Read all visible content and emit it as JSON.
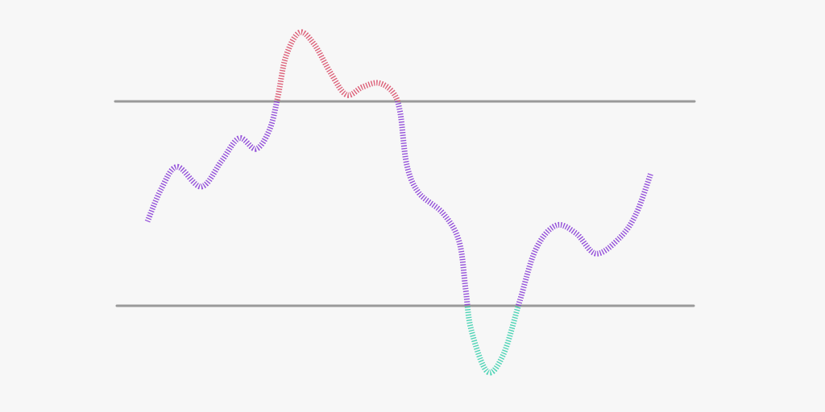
{
  "chart_data": {
    "type": "line",
    "title": "",
    "xlabel": "",
    "ylabel": "",
    "grid": false,
    "xlim": [
      0,
      100
    ],
    "ylim": [
      10,
      90
    ],
    "thresholds": {
      "upper": 70,
      "lower": 30
    },
    "colors": {
      "above_upper": "#d9506a",
      "between": "#8a3fd6",
      "below_lower": "#3ccfae",
      "threshold_line": "#9a9a9a",
      "background": "#f7f7f7"
    },
    "x": [
      0,
      2.7,
      5.9,
      10.7,
      14.7,
      18.2,
      21.6,
      24.3,
      25.9,
      27.5,
      30.2,
      33.1,
      36.3,
      39.5,
      42.7,
      45.9,
      48.8,
      50.2,
      51.5,
      53.9,
      58.7,
      61.9,
      63.2,
      64.3,
      67.5,
      70.7,
      73.9,
      77.1,
      81.1,
      85.1,
      89.1,
      93.9,
      97.1,
      100
    ],
    "values": [
      46.5,
      52.8,
      57.2,
      53.3,
      58.3,
      62.8,
      60.7,
      64.6,
      70.9,
      78.8,
      83.5,
      81.2,
      75.7,
      71.3,
      72.8,
      73.6,
      71.7,
      67.8,
      57.6,
      52.1,
      48.1,
      42.6,
      33.2,
      25.3,
      17.1,
      20.5,
      30.8,
      41.0,
      45.7,
      44.2,
      40.2,
      43.4,
      48.1,
      56.0
    ]
  }
}
